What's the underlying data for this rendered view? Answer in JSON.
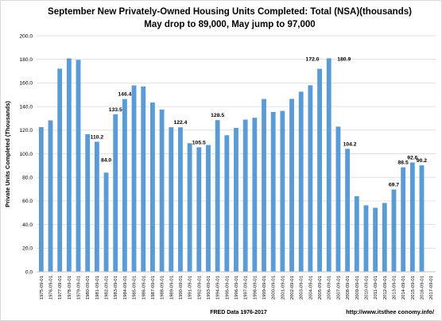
{
  "chart_data": {
    "type": "bar",
    "title": "September New Privately-Owned Housing Units Completed: Total (NSA)(thousands)",
    "subtitle": "May drop to 89,000, May jump to 97,000",
    "xlabel": "FRED Data 1976-2017",
    "ylabel": "Private Units Completed (Thousands)",
    "source_note": "http://www.itsthee conomy.info/",
    "ylim": [
      0,
      200
    ],
    "yticks": [
      "0.0",
      "20.0",
      "40.0",
      "60.0",
      "80.0",
      "100.0",
      "120.0",
      "140.0",
      "160.0",
      "180.0",
      "200.0"
    ],
    "grid": true,
    "bar_color": "#5b9bd5",
    "categories": [
      "1975-09-01",
      "1976-09-01",
      "1977-09-01",
      "1978-09-01",
      "1979-09-01",
      "1980-09-01",
      "1981-09-01",
      "1982-09-01",
      "1983-09-01",
      "1984-09-01",
      "1985-09-01",
      "1986-09-01",
      "1987-09-01",
      "1988-09-01",
      "1989-09-01",
      "1990-09-01",
      "1991-09-01",
      "1992-09-01",
      "1993-09-01",
      "1994-09-01",
      "1995-09-01",
      "1996-09-01",
      "1997-09-01",
      "1998-09-01",
      "1999-09-01",
      "2000-09-01",
      "2001-09-01",
      "2002-09-01",
      "2003-09-01",
      "2004-09-01",
      "2005-09-01",
      "2006-09-01",
      "2007-09-01",
      "2008-09-01",
      "2009-09-01",
      "2010-09-01",
      "2011-09-01",
      "2012-09-01",
      "2013-09-01",
      "2014-09-01",
      "2015-09-01",
      "2016-09-01",
      "2017-09-01"
    ],
    "values": [
      122.6,
      128.3,
      172.1,
      180.8,
      179.6,
      116.5,
      110.2,
      84.0,
      133.5,
      146.4,
      157.9,
      157.0,
      143.4,
      137.5,
      122.5,
      122.4,
      108.9,
      105.5,
      107.4,
      128.5,
      115.7,
      121.9,
      128.9,
      130.5,
      146.4,
      135.4,
      136.3,
      146.5,
      152.6,
      158.0,
      172.0,
      180.9,
      123.0,
      104.2,
      64.0,
      56.3,
      54.2,
      58.3,
      69.7,
      88.5,
      92.6,
      90.2,
      null
    ],
    "data_labels": [
      {
        "index": 6,
        "text": "110.2"
      },
      {
        "index": 7,
        "text": "84.0"
      },
      {
        "index": 8,
        "text": "133.5"
      },
      {
        "index": 9,
        "text": "146.4"
      },
      {
        "index": 15,
        "text": "122.4"
      },
      {
        "index": 17,
        "text": "105.5"
      },
      {
        "index": 19,
        "text": "128.5"
      },
      {
        "index": 30,
        "text": "172.0"
      },
      {
        "index": 31,
        "text": "180.9"
      },
      {
        "index": 33,
        "text": "104.2"
      },
      {
        "index": 38,
        "text": "69.7"
      },
      {
        "index": 39,
        "text": "88.5"
      },
      {
        "index": 40,
        "text": "92.6"
      },
      {
        "index": 41,
        "text": "90.2"
      }
    ]
  }
}
